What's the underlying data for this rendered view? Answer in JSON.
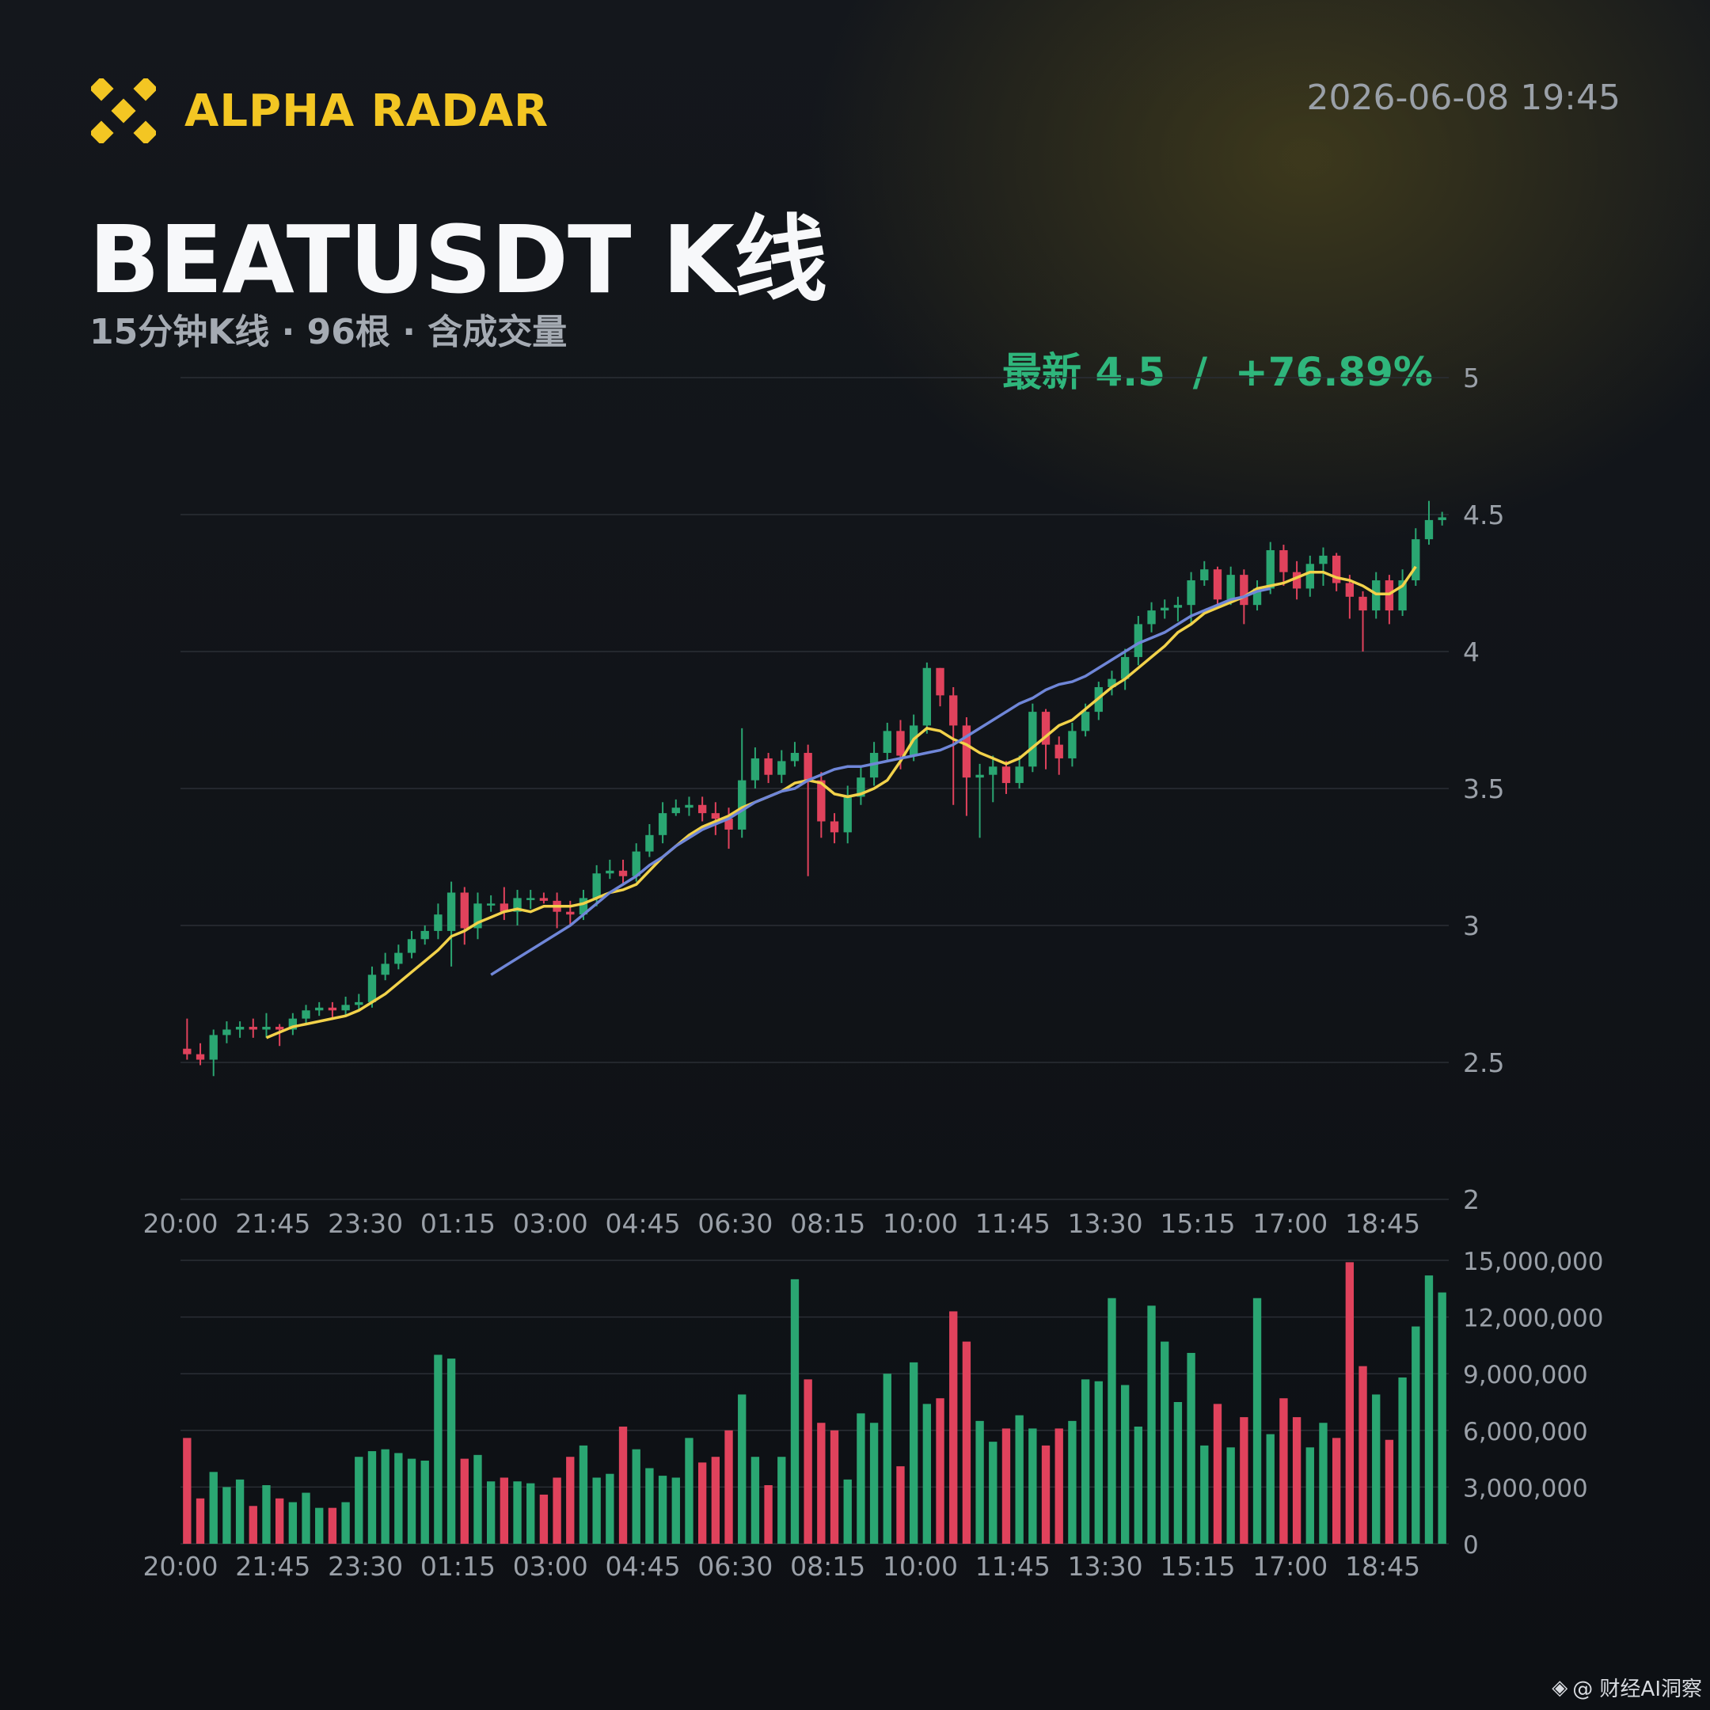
{
  "header": {
    "brand": "ALPHA RADAR",
    "timestamp": "2026-06-08 19:45",
    "title": "BEATUSDT K线",
    "subtitle": "15分钟K线 · 96根 · 含成交量",
    "latest": "最新 4.5  /  +76.89%"
  },
  "watermark": {
    "icon": "diamond-logo-icon",
    "text": "@ 财经AI洞察"
  },
  "colors": {
    "up": "#2aa672",
    "down": "#e0425c",
    "ma_fast": "#f2d24a",
    "ma_slow": "#6f86d8",
    "grid": "#2a2e35",
    "axis_text": "#9aa0a8",
    "brand": "#f3c623"
  },
  "chart_data": [
    {
      "type": "candlestick",
      "interval": "15m",
      "title": "",
      "x_tick_labels": [
        "20:00",
        "21:45",
        "23:30",
        "01:15",
        "03:00",
        "04:45",
        "06:30",
        "08:15",
        "10:00",
        "11:45",
        "13:30",
        "15:15",
        "17:00",
        "18:45"
      ],
      "ylim": [
        2,
        5
      ],
      "y_ticks": [
        2,
        2.5,
        3,
        3.5,
        4,
        4.5,
        5
      ],
      "y_tick_labels": [
        "2",
        "2.5",
        "3",
        "3.5",
        "4",
        "4.5",
        "5"
      ],
      "grid": true,
      "close": [
        2.53,
        2.51,
        2.6,
        2.62,
        2.63,
        2.62,
        2.63,
        2.62,
        2.66,
        2.69,
        2.7,
        2.69,
        2.71,
        2.72,
        2.82,
        2.86,
        2.9,
        2.95,
        2.98,
        3.04,
        3.12,
        2.99,
        3.08,
        3.08,
        3.05,
        3.1,
        3.1,
        3.09,
        3.05,
        3.04,
        3.1,
        3.19,
        3.2,
        3.18,
        3.27,
        3.33,
        3.41,
        3.43,
        3.44,
        3.41,
        3.39,
        3.35,
        3.53,
        3.61,
        3.55,
        3.6,
        3.63,
        3.53,
        3.38,
        3.34,
        3.47,
        3.54,
        3.63,
        3.71,
        3.62,
        3.73,
        3.94,
        3.84,
        3.73,
        3.54,
        3.55,
        3.58,
        3.52,
        3.58,
        3.78,
        3.66,
        3.61,
        3.71,
        3.78,
        3.87,
        3.9,
        3.98,
        4.1,
        4.15,
        4.16,
        4.17,
        4.26,
        4.3,
        4.19,
        4.28,
        4.17,
        4.23,
        4.37,
        4.29,
        4.23,
        4.32,
        4.35,
        4.25,
        4.2,
        4.15,
        4.26,
        4.15,
        4.26,
        4.41,
        4.48,
        4.49
      ],
      "open": [
        2.55,
        2.53,
        2.51,
        2.6,
        2.62,
        2.63,
        2.62,
        2.63,
        2.62,
        2.66,
        2.69,
        2.7,
        2.69,
        2.71,
        2.72,
        2.82,
        2.86,
        2.9,
        2.95,
        2.98,
        2.98,
        3.12,
        2.99,
        3.08,
        3.08,
        3.05,
        3.1,
        3.1,
        3.09,
        3.05,
        3.04,
        3.1,
        3.19,
        3.2,
        3.18,
        3.27,
        3.33,
        3.41,
        3.43,
        3.44,
        3.41,
        3.39,
        3.35,
        3.53,
        3.61,
        3.55,
        3.6,
        3.63,
        3.53,
        3.38,
        3.34,
        3.47,
        3.54,
        3.63,
        3.71,
        3.62,
        3.73,
        3.94,
        3.84,
        3.73,
        3.54,
        3.55,
        3.58,
        3.52,
        3.58,
        3.78,
        3.66,
        3.61,
        3.71,
        3.78,
        3.87,
        3.9,
        3.98,
        4.1,
        4.15,
        4.16,
        4.17,
        4.26,
        4.3,
        4.19,
        4.28,
        4.17,
        4.23,
        4.37,
        4.29,
        4.23,
        4.32,
        4.35,
        4.25,
        4.2,
        4.15,
        4.26,
        4.15,
        4.26,
        4.41,
        4.48
      ],
      "high": [
        2.66,
        2.57,
        2.62,
        2.65,
        2.65,
        2.66,
        2.68,
        2.64,
        2.68,
        2.71,
        2.72,
        2.72,
        2.74,
        2.75,
        2.85,
        2.9,
        2.93,
        2.98,
        3.0,
        3.08,
        3.16,
        3.14,
        3.12,
        3.11,
        3.14,
        3.13,
        3.13,
        3.12,
        3.12,
        3.09,
        3.13,
        3.22,
        3.24,
        3.24,
        3.3,
        3.37,
        3.45,
        3.46,
        3.47,
        3.47,
        3.45,
        3.43,
        3.72,
        3.65,
        3.63,
        3.64,
        3.67,
        3.66,
        3.56,
        3.41,
        3.51,
        3.58,
        3.67,
        3.74,
        3.75,
        3.77,
        3.96,
        3.94,
        3.87,
        3.76,
        3.59,
        3.62,
        3.6,
        3.62,
        3.81,
        3.79,
        3.69,
        3.74,
        3.81,
        3.89,
        3.93,
        4.01,
        4.13,
        4.18,
        4.19,
        4.2,
        4.29,
        4.33,
        4.31,
        4.31,
        4.3,
        4.26,
        4.4,
        4.39,
        4.33,
        4.35,
        4.38,
        4.36,
        4.28,
        4.22,
        4.29,
        4.28,
        4.3,
        4.45,
        4.55,
        4.51
      ],
      "low": [
        2.51,
        2.49,
        2.45,
        2.57,
        2.59,
        2.59,
        2.59,
        2.56,
        2.6,
        2.64,
        2.67,
        2.66,
        2.67,
        2.69,
        2.7,
        2.8,
        2.84,
        2.88,
        2.93,
        2.95,
        2.85,
        2.93,
        2.95,
        3.05,
        3.02,
        3.0,
        3.06,
        3.08,
        2.99,
        3.0,
        3.02,
        3.07,
        3.17,
        3.15,
        3.16,
        3.25,
        3.3,
        3.4,
        3.4,
        3.38,
        3.33,
        3.28,
        3.32,
        3.5,
        3.52,
        3.52,
        3.58,
        3.18,
        3.32,
        3.3,
        3.3,
        3.44,
        3.51,
        3.6,
        3.57,
        3.6,
        3.7,
        3.8,
        3.44,
        3.4,
        3.32,
        3.45,
        3.48,
        3.5,
        3.56,
        3.57,
        3.55,
        3.58,
        3.69,
        3.75,
        3.84,
        3.86,
        3.95,
        4.07,
        4.12,
        4.11,
        4.1,
        4.24,
        4.16,
        4.17,
        4.1,
        4.15,
        4.21,
        4.24,
        4.19,
        4.2,
        4.24,
        4.22,
        4.12,
        4.0,
        4.12,
        4.1,
        4.13,
        4.24,
        4.39,
        4.46
      ],
      "ma_fast": {
        "start": 6,
        "values": [
          2.59,
          2.61,
          2.63,
          2.64,
          2.65,
          2.66,
          2.67,
          2.69,
          2.72,
          2.75,
          2.79,
          2.83,
          2.87,
          2.91,
          2.96,
          2.98,
          3.01,
          3.03,
          3.05,
          3.06,
          3.05,
          3.07,
          3.07,
          3.07,
          3.08,
          3.1,
          3.12,
          3.13,
          3.15,
          3.2,
          3.25,
          3.29,
          3.33,
          3.36,
          3.38,
          3.4,
          3.43,
          3.45,
          3.47,
          3.49,
          3.52,
          3.53,
          3.52,
          3.48,
          3.47,
          3.48,
          3.5,
          3.53,
          3.6,
          3.68,
          3.72,
          3.71,
          3.68,
          3.66,
          3.63,
          3.61,
          3.59,
          3.61,
          3.65,
          3.69,
          3.73,
          3.75,
          3.79,
          3.83,
          3.87,
          3.9,
          3.94,
          3.98,
          4.02,
          4.07,
          4.1,
          4.14,
          4.16,
          4.18,
          4.2,
          4.23,
          4.24,
          4.25,
          4.27,
          4.29,
          4.29,
          4.27,
          4.26,
          4.24,
          4.21,
          4.21,
          4.24,
          4.31
        ]
      },
      "ma_slow": {
        "start": 23,
        "values": [
          2.82,
          2.85,
          2.88,
          2.91,
          2.94,
          2.97,
          3.0,
          3.04,
          3.08,
          3.12,
          3.15,
          3.18,
          3.22,
          3.25,
          3.29,
          3.32,
          3.35,
          3.37,
          3.39,
          3.42,
          3.45,
          3.47,
          3.49,
          3.5,
          3.53,
          3.55,
          3.57,
          3.58,
          3.58,
          3.59,
          3.6,
          3.61,
          3.62,
          3.63,
          3.64,
          3.66,
          3.69,
          3.72,
          3.75,
          3.78,
          3.81,
          3.83,
          3.86,
          3.88,
          3.89,
          3.91,
          3.94,
          3.97,
          4.0,
          4.03,
          4.05,
          4.07,
          4.1,
          4.13,
          4.15,
          4.17,
          4.19,
          4.2,
          4.22,
          4.23
        ]
      }
    },
    {
      "type": "bar",
      "title": "",
      "x_tick_labels": [
        "20:00",
        "21:45",
        "23:30",
        "01:15",
        "03:00",
        "04:45",
        "06:30",
        "08:15",
        "10:00",
        "11:45",
        "13:30",
        "15:15",
        "17:00",
        "18:45"
      ],
      "ylim": [
        0,
        15000000
      ],
      "y_ticks": [
        0,
        3000000,
        6000000,
        9000000,
        12000000,
        15000000
      ],
      "y_tick_labels": [
        "0",
        "3,000,000",
        "6,000,000",
        "9,000,000",
        "12,000,000",
        "15,000,000"
      ],
      "values": [
        5600000,
        2400000,
        3800000,
        3000000,
        3400000,
        2000000,
        3100000,
        2400000,
        2200000,
        2700000,
        1900000,
        1900000,
        2200000,
        4600000,
        4900000,
        5000000,
        4800000,
        4500000,
        4400000,
        10000000,
        9800000,
        4500000,
        4700000,
        3300000,
        3500000,
        3300000,
        3200000,
        2600000,
        3500000,
        4600000,
        5200000,
        3500000,
        3700000,
        6200000,
        5000000,
        4000000,
        3600000,
        3500000,
        5600000,
        4300000,
        4600000,
        6000000,
        7900000,
        4600000,
        3100000,
        4600000,
        14000000,
        8700000,
        6400000,
        6000000,
        3400000,
        6900000,
        6400000,
        9000000,
        4100000,
        9600000,
        7400000,
        7700000,
        12300000,
        10700000,
        6500000,
        5400000,
        6100000,
        6800000,
        6100000,
        5200000,
        6100000,
        6500000,
        8700000,
        8600000,
        13000000,
        8400000,
        6200000,
        12600000,
        10700000,
        7500000,
        10100000,
        5200000,
        7400000,
        5100000,
        6700000,
        13000000,
        5800000,
        7700000,
        6700000,
        5100000,
        6400000,
        5600000,
        14900000,
        9400000,
        7900000,
        5500000,
        8800000,
        11500000,
        14200000,
        13300000
      ]
    }
  ]
}
